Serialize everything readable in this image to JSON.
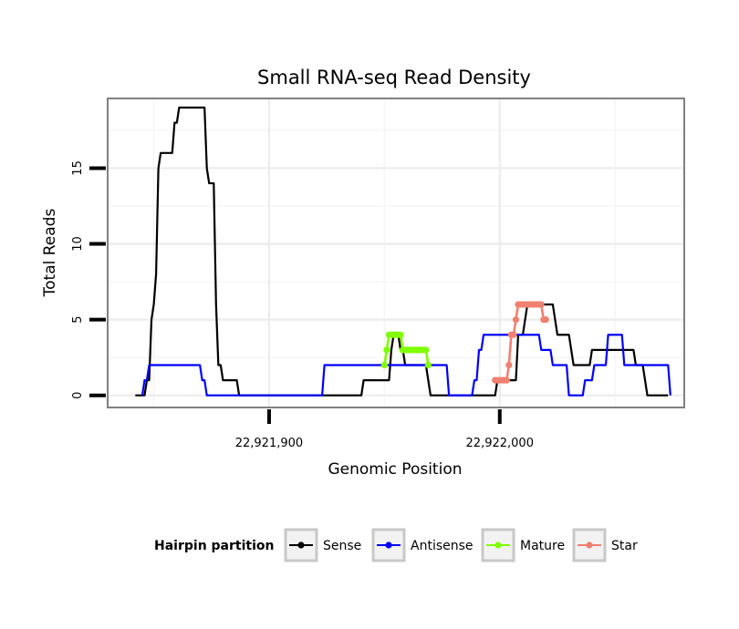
{
  "chart_data": {
    "type": "line",
    "title": "Small RNA-seq Read Density",
    "xlabel": "Genomic Position",
    "ylabel": "Total Reads",
    "xlim": [
      22921830,
      22922080
    ],
    "ylim": [
      -0.8,
      19.6
    ],
    "x_ticks": [
      {
        "value": 22921900,
        "label": "22,921,900"
      },
      {
        "value": 22922000,
        "label": "22,922,000"
      }
    ],
    "y_ticks": [
      {
        "value": 0,
        "label": "0"
      },
      {
        "value": 5,
        "label": "5"
      },
      {
        "value": 10,
        "label": "10"
      },
      {
        "value": 15,
        "label": "15"
      }
    ],
    "grid": true,
    "legend": {
      "title": "Hairpin partition",
      "position": "bottom",
      "entries": [
        {
          "name": "Sense",
          "color": "#000000"
        },
        {
          "name": "Antisense",
          "color": "#0000ff"
        },
        {
          "name": "Mature",
          "color": "#7fff00"
        },
        {
          "name": "Star",
          "color": "#f08070"
        }
      ]
    },
    "series": [
      {
        "name": "Sense",
        "color": "#000000",
        "markers": false,
        "points": [
          [
            22921842,
            0
          ],
          [
            22921846,
            0
          ],
          [
            22921847,
            1
          ],
          [
            22921848,
            1
          ],
          [
            22921849,
            5
          ],
          [
            22921850,
            6
          ],
          [
            22921851,
            8
          ],
          [
            22921852,
            15
          ],
          [
            22921853,
            16
          ],
          [
            22921858,
            16
          ],
          [
            22921859,
            18
          ],
          [
            22921860,
            18
          ],
          [
            22921861,
            19
          ],
          [
            22921872,
            19
          ],
          [
            22921873,
            15
          ],
          [
            22921874,
            14
          ],
          [
            22921876,
            14
          ],
          [
            22921877,
            6
          ],
          [
            22921878,
            2
          ],
          [
            22921879,
            2
          ],
          [
            22921880,
            1
          ],
          [
            22921886,
            1
          ],
          [
            22921887,
            0
          ],
          [
            22921940,
            0
          ],
          [
            22921941,
            1
          ],
          [
            22921952,
            1
          ],
          [
            22921953,
            3
          ],
          [
            22921954,
            4
          ],
          [
            22921956,
            4
          ],
          [
            22921957,
            3
          ],
          [
            22921958,
            3
          ],
          [
            22921959,
            2
          ],
          [
            22921968,
            2
          ],
          [
            22921969,
            1
          ],
          [
            22921970,
            0
          ],
          [
            22921998,
            0
          ],
          [
            22921999,
            1
          ],
          [
            22922007,
            1
          ],
          [
            22922008,
            4
          ],
          [
            22922010,
            4
          ],
          [
            22922011,
            5
          ],
          [
            22922012,
            6
          ],
          [
            22922023,
            6
          ],
          [
            22922024,
            5
          ],
          [
            22922025,
            4
          ],
          [
            22922030,
            4
          ],
          [
            22922031,
            3
          ],
          [
            22922032,
            2
          ],
          [
            22922039,
            2
          ],
          [
            22922040,
            3
          ],
          [
            22922058,
            3
          ],
          [
            22922059,
            2
          ],
          [
            22922062,
            2
          ],
          [
            22922063,
            1
          ],
          [
            22922064,
            0
          ],
          [
            22922073,
            0
          ]
        ]
      },
      {
        "name": "Antisense",
        "color": "#0000ff",
        "markers": false,
        "points": [
          [
            22921845,
            0
          ],
          [
            22921846,
            1
          ],
          [
            22921847,
            1
          ],
          [
            22921848,
            2
          ],
          [
            22921870,
            2
          ],
          [
            22921871,
            1
          ],
          [
            22921872,
            1
          ],
          [
            22921873,
            0
          ],
          [
            22921883,
            0
          ],
          [
            22921884,
            0
          ],
          [
            22921923,
            0
          ],
          [
            22921924,
            2
          ],
          [
            22921977,
            2
          ],
          [
            22921978,
            0
          ],
          [
            22921988,
            0
          ],
          [
            22921989,
            1
          ],
          [
            22921990,
            1
          ],
          [
            22921991,
            3
          ],
          [
            22921992,
            3
          ],
          [
            22921993,
            4
          ],
          [
            22922017,
            4
          ],
          [
            22922018,
            3
          ],
          [
            22922022,
            3
          ],
          [
            22922023,
            2
          ],
          [
            22922029,
            2
          ],
          [
            22922030,
            0
          ],
          [
            22922036,
            0
          ],
          [
            22922037,
            1
          ],
          [
            22922040,
            1
          ],
          [
            22922041,
            2
          ],
          [
            22922046,
            2
          ],
          [
            22922047,
            4
          ],
          [
            22922053,
            4
          ],
          [
            22922054,
            2
          ],
          [
            22922073,
            2
          ],
          [
            22922074,
            0
          ]
        ]
      },
      {
        "name": "Mature",
        "color": "#7fff00",
        "markers": true,
        "points": [
          [
            22921950,
            2
          ],
          [
            22921951,
            3
          ],
          [
            22921952,
            4
          ],
          [
            22921953,
            4
          ],
          [
            22921954,
            4
          ],
          [
            22921955,
            4
          ],
          [
            22921956,
            4
          ],
          [
            22921957,
            4
          ],
          [
            22921958,
            3
          ],
          [
            22921959,
            3
          ],
          [
            22921960,
            3
          ],
          [
            22921961,
            3
          ],
          [
            22921962,
            3
          ],
          [
            22921963,
            3
          ],
          [
            22921964,
            3
          ],
          [
            22921965,
            3
          ],
          [
            22921966,
            3
          ],
          [
            22921967,
            3
          ],
          [
            22921968,
            3
          ],
          [
            22921969,
            2
          ]
        ]
      },
      {
        "name": "Star",
        "color": "#f08070",
        "markers": true,
        "points": [
          [
            22921998,
            1
          ],
          [
            22921999,
            1
          ],
          [
            22922000,
            1
          ],
          [
            22922001,
            1
          ],
          [
            22922002,
            1
          ],
          [
            22922003,
            1
          ],
          [
            22922004,
            2
          ],
          [
            22922005,
            4
          ],
          [
            22922006,
            4
          ],
          [
            22922007,
            5
          ],
          [
            22922008,
            6
          ],
          [
            22922009,
            6
          ],
          [
            22922010,
            6
          ],
          [
            22922011,
            6
          ],
          [
            22922012,
            6
          ],
          [
            22922013,
            6
          ],
          [
            22922014,
            6
          ],
          [
            22922015,
            6
          ],
          [
            22922016,
            6
          ],
          [
            22922017,
            6
          ],
          [
            22922018,
            6
          ],
          [
            22922019,
            5
          ],
          [
            22922020,
            5
          ]
        ]
      }
    ]
  }
}
